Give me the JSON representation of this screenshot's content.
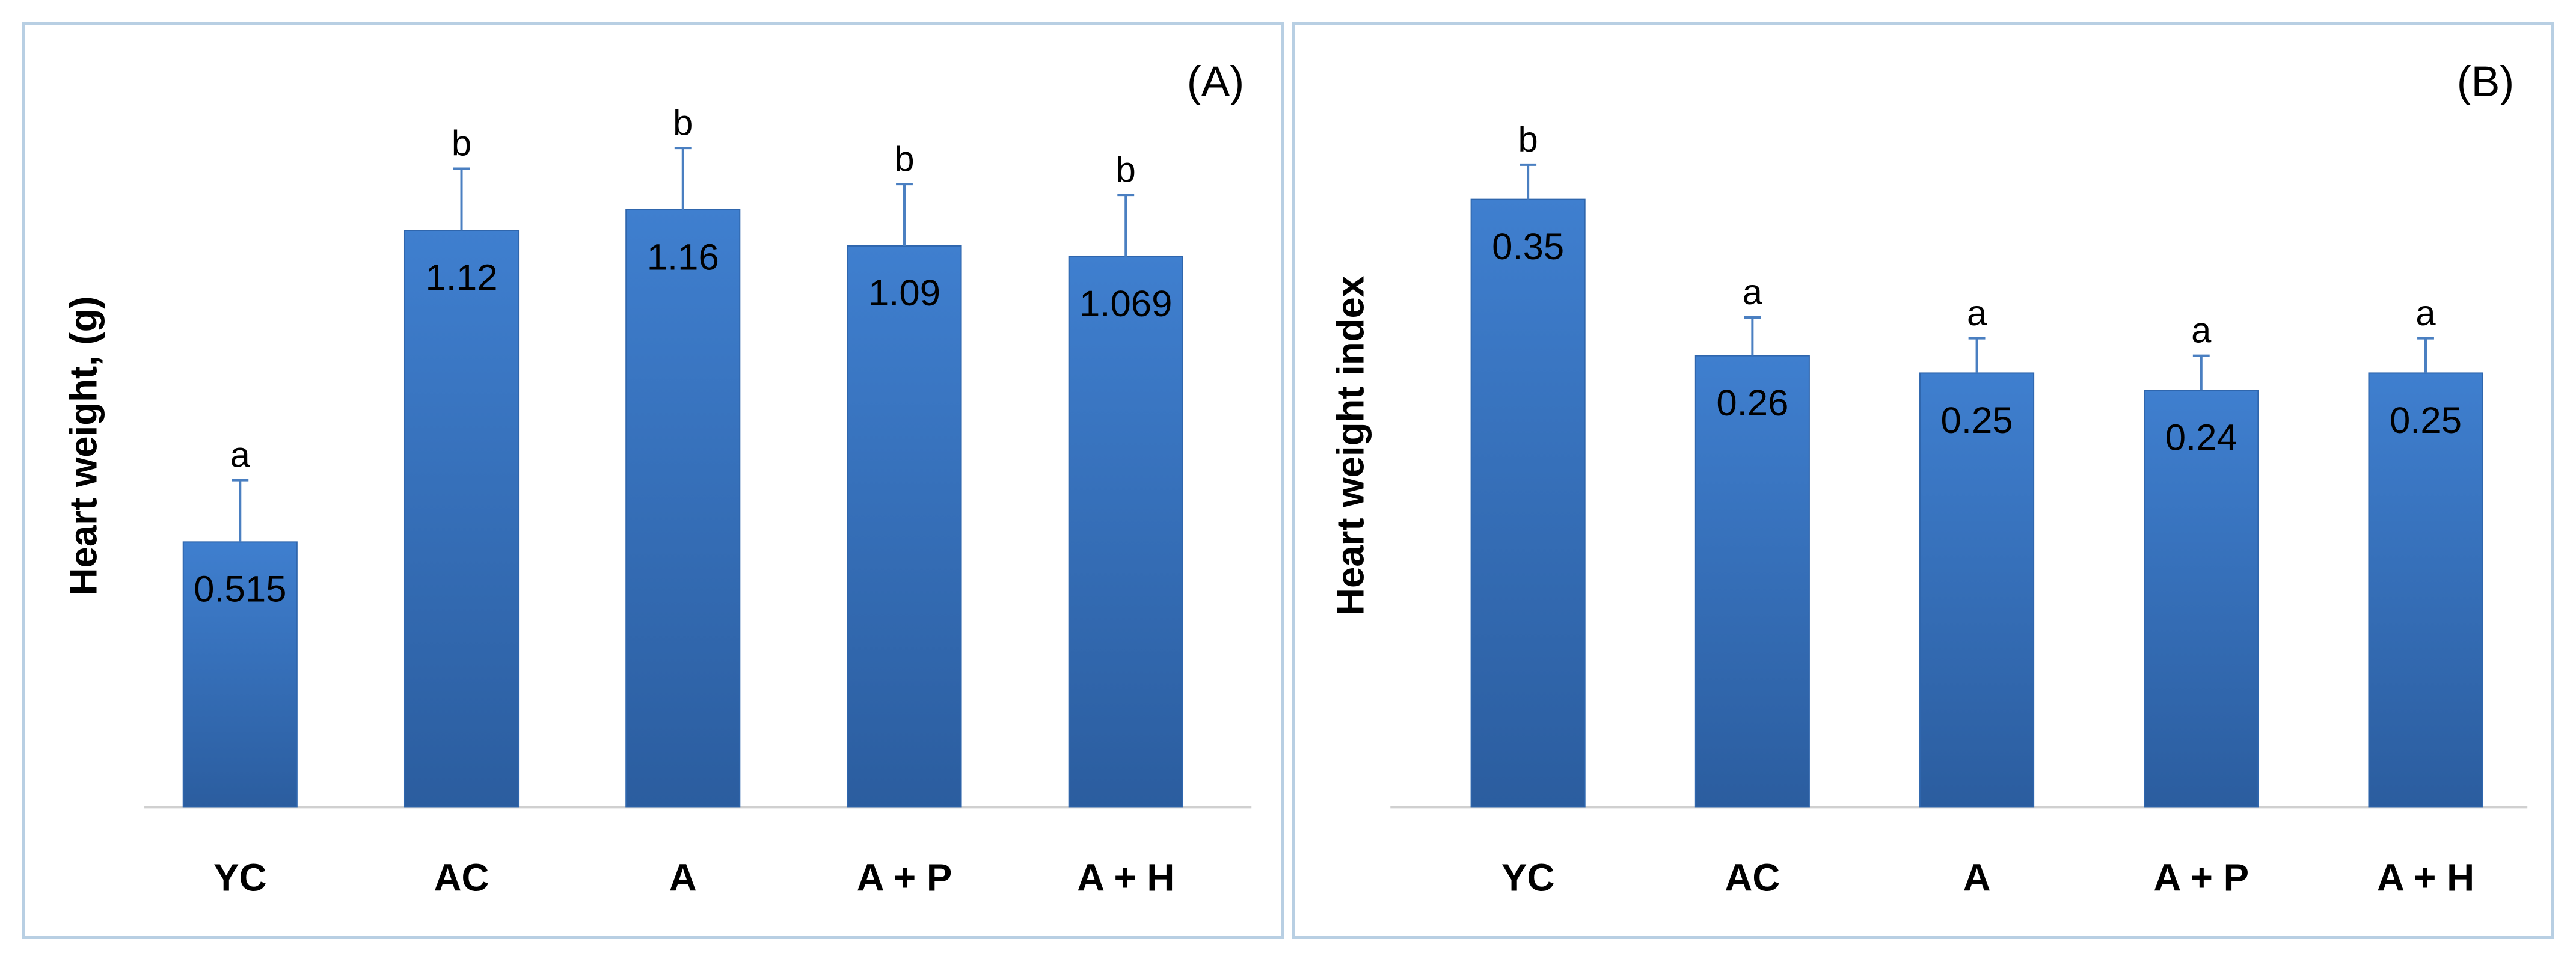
{
  "colors": {
    "bar_top": "#3f7fcf",
    "bar_bottom": "#2b5d9f",
    "bar_edge": "#2f66ad",
    "error_bar": "#4a7fc1",
    "panel_border": "#b8cfe3"
  },
  "chart_data": [
    {
      "type": "bar",
      "panel_label": "(A)",
      "title": "",
      "xlabel": "",
      "ylabel": "Heart weight, (g)",
      "ylim": [
        0,
        1.45
      ],
      "grid": false,
      "categories": [
        "YC",
        "AC",
        "A",
        "A + P",
        "A + H"
      ],
      "values": [
        0.515,
        1.12,
        1.16,
        1.09,
        1.069
      ],
      "value_labels": [
        "0.515",
        "1.12",
        "1.16",
        "1.09",
        "1.069"
      ],
      "errors": [
        0.12,
        0.12,
        0.12,
        0.12,
        0.12
      ],
      "significance": [
        "a",
        "b",
        "b",
        "b",
        "b"
      ]
    },
    {
      "type": "bar",
      "panel_label": "(B)",
      "title": "",
      "xlabel": "",
      "ylabel": "Heart weight index",
      "ylim": [
        0,
        0.43
      ],
      "grid": false,
      "categories": [
        "YC",
        "AC",
        "A",
        "A + P",
        "A + H"
      ],
      "values": [
        0.35,
        0.26,
        0.25,
        0.24,
        0.25
      ],
      "value_labels": [
        "0.35",
        "0.26",
        "0.25",
        "0.24",
        "0.25"
      ],
      "errors": [
        0.02,
        0.022,
        0.02,
        0.02,
        0.02
      ],
      "significance": [
        "b",
        "a",
        "a",
        "a",
        "a"
      ]
    }
  ]
}
